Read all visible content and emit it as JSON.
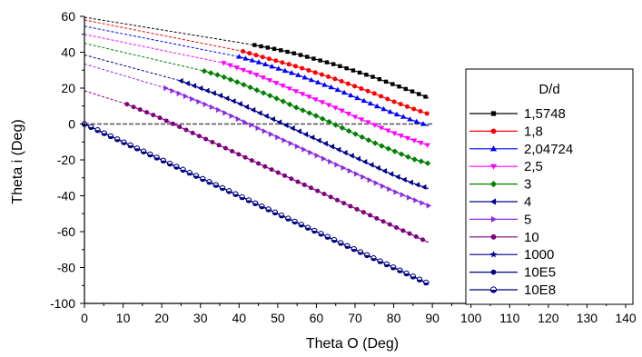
{
  "chart_data": {
    "type": "scatter",
    "title": "",
    "xlabel": "Theta O (Deg)",
    "ylabel": "Theta i (Deg)",
    "xlim": [
      0,
      140
    ],
    "ylim": [
      -100,
      60
    ],
    "x_ticks": [
      0,
      10,
      20,
      30,
      40,
      50,
      60,
      70,
      80,
      90,
      100,
      110,
      120,
      130,
      140
    ],
    "y_ticks": [
      -100,
      -80,
      -60,
      -40,
      -20,
      0,
      20,
      40,
      60
    ],
    "grid": false,
    "legend": {
      "title": "D/d",
      "placement": "right"
    },
    "series": [
      {
        "name": "1,5748",
        "color": "#000000",
        "marker": "square",
        "x": [
          0,
          44,
          50,
          55,
          60,
          65,
          70,
          75,
          80,
          85,
          89
        ],
        "y": [
          59.5,
          44,
          41.5,
          39,
          36,
          33,
          29.5,
          26,
          22,
          18,
          14.5
        ]
      },
      {
        "name": "1,8",
        "color": "#ff0000",
        "marker": "circle",
        "x": [
          0,
          41,
          45,
          50,
          55,
          60,
          65,
          70,
          75,
          80,
          85,
          89
        ],
        "y": [
          58,
          40.5,
          38,
          35,
          32,
          28.5,
          25,
          21,
          17,
          12.5,
          8.5,
          5.5
        ]
      },
      {
        "name": "2,04724",
        "color": "#0000ff",
        "marker": "triangle-up",
        "x": [
          0,
          40,
          45,
          50,
          55,
          60,
          65,
          70,
          75,
          80,
          85,
          89
        ],
        "y": [
          54.5,
          37.5,
          34.5,
          31,
          27.5,
          23.5,
          19.5,
          15,
          10.5,
          6,
          2,
          -1
        ]
      },
      {
        "name": "2,5",
        "color": "#ff00ff",
        "marker": "triangle-down",
        "x": [
          0,
          36,
          40,
          45,
          50,
          55,
          60,
          65,
          70,
          75,
          80,
          85,
          89
        ],
        "y": [
          50,
          34,
          31,
          27,
          22.5,
          18,
          13.5,
          9,
          4,
          -0.5,
          -5,
          -9,
          -12
        ]
      },
      {
        "name": "3",
        "color": "#008000",
        "marker": "diamond",
        "x": [
          0,
          31,
          35,
          40,
          45,
          50,
          55,
          60,
          65,
          70,
          75,
          80,
          85,
          89
        ],
        "y": [
          45,
          29.5,
          27,
          23,
          18.5,
          14,
          9,
          4.5,
          -0.5,
          -5.5,
          -10.5,
          -15,
          -19.5,
          -22
        ]
      },
      {
        "name": "4",
        "color": "#00008b",
        "marker": "triangle-left",
        "x": [
          0,
          25,
          30,
          35,
          40,
          45,
          50,
          55,
          60,
          65,
          70,
          75,
          80,
          85,
          89
        ],
        "y": [
          38.5,
          24,
          20,
          16,
          11.5,
          6.5,
          1.5,
          -3.5,
          -8.5,
          -13.5,
          -18.5,
          -23.5,
          -28.5,
          -33,
          -36
        ]
      },
      {
        "name": "5",
        "color": "#8a2be2",
        "marker": "triangle-right",
        "x": [
          0,
          21,
          25,
          30,
          35,
          40,
          45,
          50,
          55,
          60,
          65,
          70,
          75,
          80,
          85,
          89
        ],
        "y": [
          33.5,
          20,
          16.5,
          12,
          7.5,
          2.5,
          -2.5,
          -7.5,
          -12.5,
          -17.5,
          -22.5,
          -27.5,
          -32.5,
          -37.5,
          -42,
          -45.5
        ]
      },
      {
        "name": "10",
        "color": "#800080",
        "marker": "circle",
        "x": [
          0,
          11,
          15,
          20,
          25,
          30,
          35,
          40,
          45,
          50,
          55,
          60,
          65,
          70,
          75,
          80,
          85,
          89
        ],
        "y": [
          18.5,
          11,
          7.5,
          3,
          -2,
          -7,
          -12,
          -17,
          -22,
          -27,
          -32,
          -37,
          -42,
          -47,
          -52,
          -57,
          -62,
          -66
        ]
      },
      {
        "name": "1000",
        "color": "#00008b",
        "marker": "star",
        "x": [
          0,
          5,
          10,
          15,
          20,
          25,
          30,
          35,
          40,
          45,
          50,
          55,
          60,
          65,
          70,
          75,
          80,
          85,
          89
        ],
        "y": [
          0,
          -5,
          -10,
          -15,
          -20,
          -25,
          -30,
          -35,
          -40,
          -45,
          -50,
          -55,
          -60,
          -65,
          -70,
          -75,
          -80,
          -85,
          -89
        ]
      },
      {
        "name": "10E5",
        "color": "#000080",
        "marker": "circle",
        "x": [
          0,
          5,
          10,
          15,
          20,
          25,
          30,
          35,
          40,
          45,
          50,
          55,
          60,
          65,
          70,
          75,
          80,
          85,
          89
        ],
        "y": [
          0,
          -5,
          -10,
          -15,
          -20,
          -25,
          -30,
          -35,
          -40,
          -45,
          -50,
          -55,
          -60,
          -65,
          -70,
          -75,
          -80,
          -85,
          -89
        ]
      },
      {
        "name": "10E8",
        "color": "#000080",
        "marker": "half-circle",
        "x": [
          0,
          5,
          10,
          15,
          20,
          25,
          30,
          35,
          40,
          45,
          50,
          55,
          60,
          65,
          70,
          75,
          80,
          85,
          89
        ],
        "y": [
          0,
          -5,
          -10,
          -15,
          -20,
          -25,
          -30,
          -35,
          -40,
          -45,
          -50,
          -55,
          -60,
          -65,
          -70,
          -75,
          -80,
          -85,
          -89
        ]
      }
    ]
  }
}
